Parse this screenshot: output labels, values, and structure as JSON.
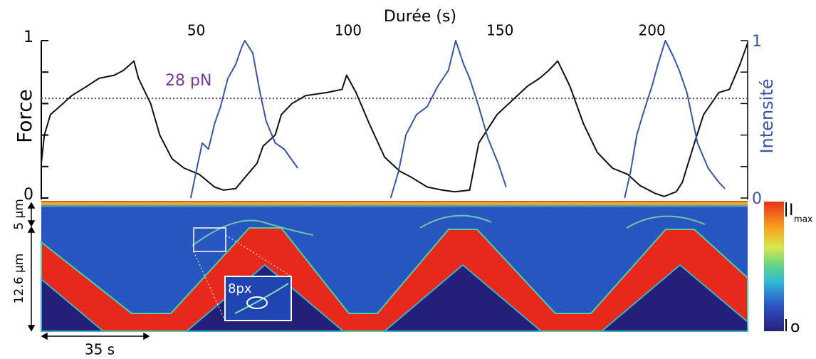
{
  "chart_data": {
    "type": "line",
    "xlabel": "Durée (s)",
    "xaxis_position": "top",
    "ylabel": "Force",
    "y2label": "Intensité",
    "xlim": [
      -1,
      231.5
    ],
    "xticks": [
      50,
      100,
      150,
      200
    ],
    "ylim": [
      0,
      1
    ],
    "yticks": [
      0,
      1
    ],
    "yminorticks": [
      0.2,
      0.4,
      0.6,
      0.8
    ],
    "y2lim": [
      0,
      1
    ],
    "y2ticks": [
      0,
      1
    ],
    "y2minorticks": [
      0.2,
      0.4,
      0.6,
      0.8
    ],
    "annotation": {
      "text": "28 pN",
      "value": 0.633,
      "color": "#7b3a96"
    },
    "series": [
      {
        "color": "#111111",
        "x": [
          -1,
          0,
          2,
          5,
          9,
          14,
          18,
          23,
          26,
          29.5,
          31,
          35,
          38,
          42,
          46,
          51,
          56,
          59,
          63,
          66,
          70,
          72,
          76,
          78,
          81.5,
          86,
          93,
          98,
          99.5,
          102.6,
          107,
          112,
          117,
          121,
          126,
          131,
          135,
          140,
          143,
          146,
          149,
          154,
          159,
          163,
          166,
          169,
          173,
          177.5,
          182,
          187,
          192,
          196,
          201,
          204,
          208,
          210,
          214,
          217,
          222,
          225.5,
          229,
          231.4
        ],
        "values": [
          0.22,
          0.4,
          0.53,
          0.58,
          0.65,
          0.71,
          0.76,
          0.78,
          0.81,
          0.87,
          0.76,
          0.6,
          0.4,
          0.25,
          0.19,
          0.15,
          0.07,
          0.05,
          0.06,
          0.13,
          0.22,
          0.33,
          0.4,
          0.53,
          0.6,
          0.65,
          0.67,
          0.69,
          0.78,
          0.67,
          0.47,
          0.26,
          0.17,
          0.13,
          0.07,
          0.05,
          0.04,
          0.05,
          0.35,
          0.44,
          0.53,
          0.62,
          0.71,
          0.76,
          0.81,
          0.87,
          0.71,
          0.47,
          0.29,
          0.19,
          0.15,
          0.08,
          0.03,
          0.01,
          0.04,
          0.1,
          0.35,
          0.53,
          0.67,
          0.69,
          0.85,
          0.98
        ]
      },
      {
        "color": "#3a55a4",
        "axis": "y2",
        "x": [
          48.2,
          50,
          52,
          54,
          56,
          58,
          60.4,
          63,
          65,
          66,
          68.6,
          71,
          73,
          76,
          79,
          83.4,
          null,
          114,
          116.6,
          119,
          122.5,
          126,
          129.5,
          133,
          135.4,
          138,
          140,
          143,
          146,
          149.4,
          152,
          null,
          191,
          193,
          195,
          197,
          200,
          202,
          204.4,
          207,
          209,
          211.5,
          215,
          218.5,
          222,
          224
        ],
        "values": [
          0,
          0.17,
          0.35,
          0.31,
          0.47,
          0.58,
          0.76,
          0.85,
          0.96,
          1.0,
          0.92,
          0.67,
          0.49,
          0.35,
          0.31,
          0.19,
          null,
          0,
          0.17,
          0.4,
          0.53,
          0.58,
          0.71,
          0.81,
          1.0,
          0.85,
          0.76,
          0.58,
          0.38,
          0.22,
          0.07,
          null,
          0,
          0.17,
          0.4,
          0.53,
          0.71,
          0.85,
          1.0,
          0.9,
          0.81,
          0.67,
          0.35,
          0.19,
          0.1,
          0.06
        ]
      }
    ]
  },
  "kymograph": {
    "scale_bars": [
      "5 µm",
      "12.6 µm",
      "35 s"
    ],
    "inset_label": "8px",
    "colorbar": {
      "max": "I",
      "max_sub": "max",
      "min": "o"
    }
  }
}
